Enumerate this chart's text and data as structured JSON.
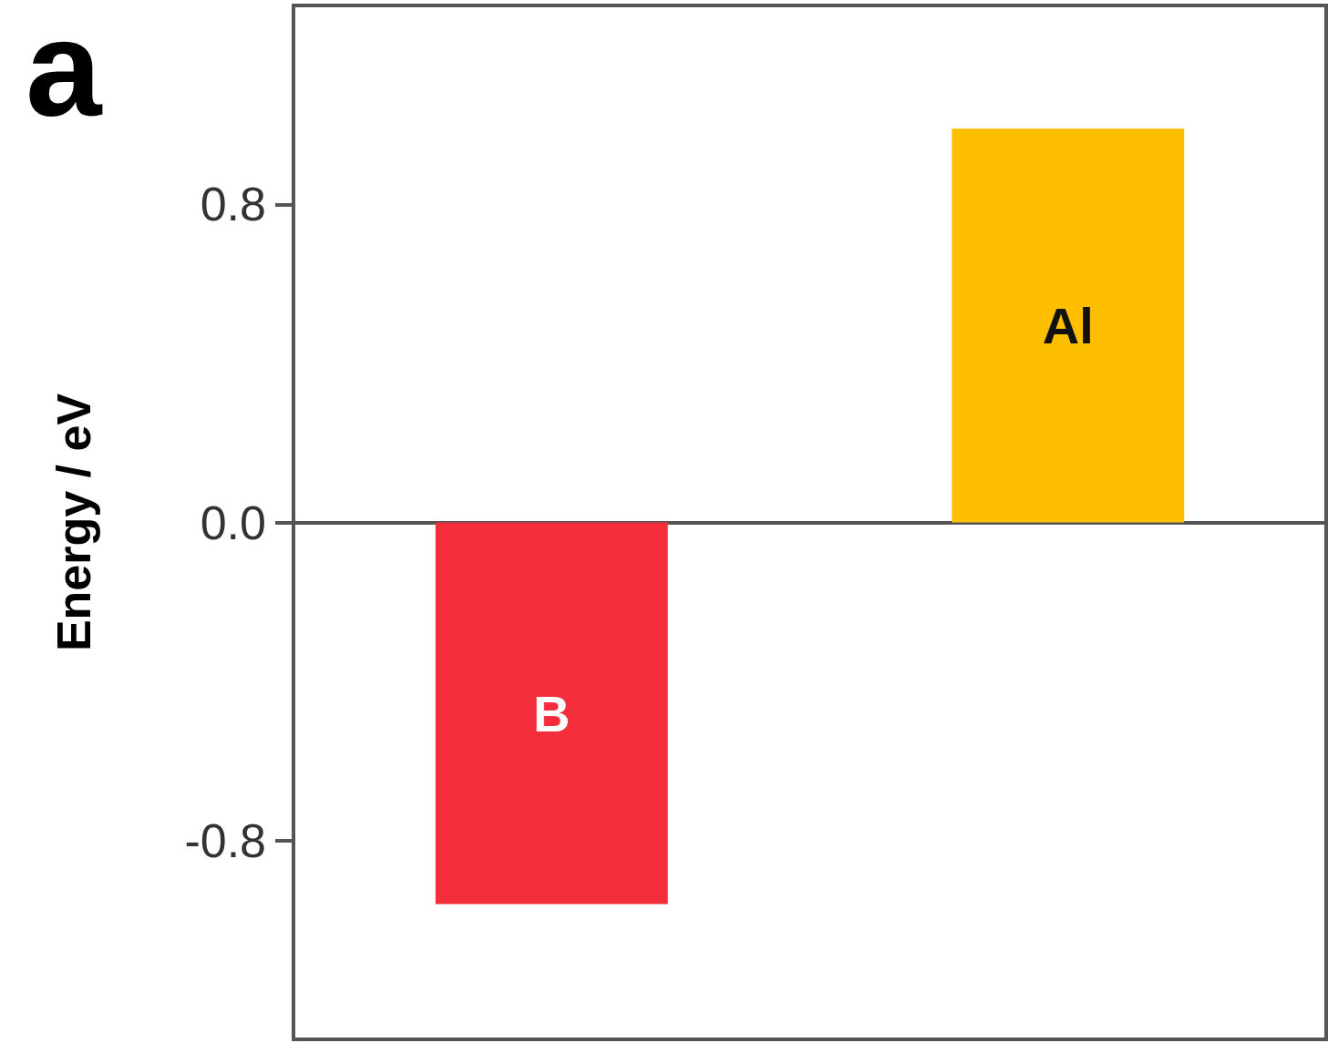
{
  "chart_data": {
    "type": "bar",
    "ylabel": "Energy / eV",
    "annotations": [
      "a"
    ],
    "categories": [
      "B",
      "Al"
    ],
    "values": [
      -0.96,
      0.99
    ],
    "colors": [
      "#f32d3a",
      "#fdbf00"
    ],
    "ylim": [
      -1.3,
      1.3
    ],
    "yticks": [
      {
        "value": -0.8,
        "label": "-0.8"
      },
      {
        "value": 0,
        "label": "0.0"
      },
      {
        "value": 0.8,
        "label": "0.8"
      }
    ],
    "tick_labels": "y"
  }
}
